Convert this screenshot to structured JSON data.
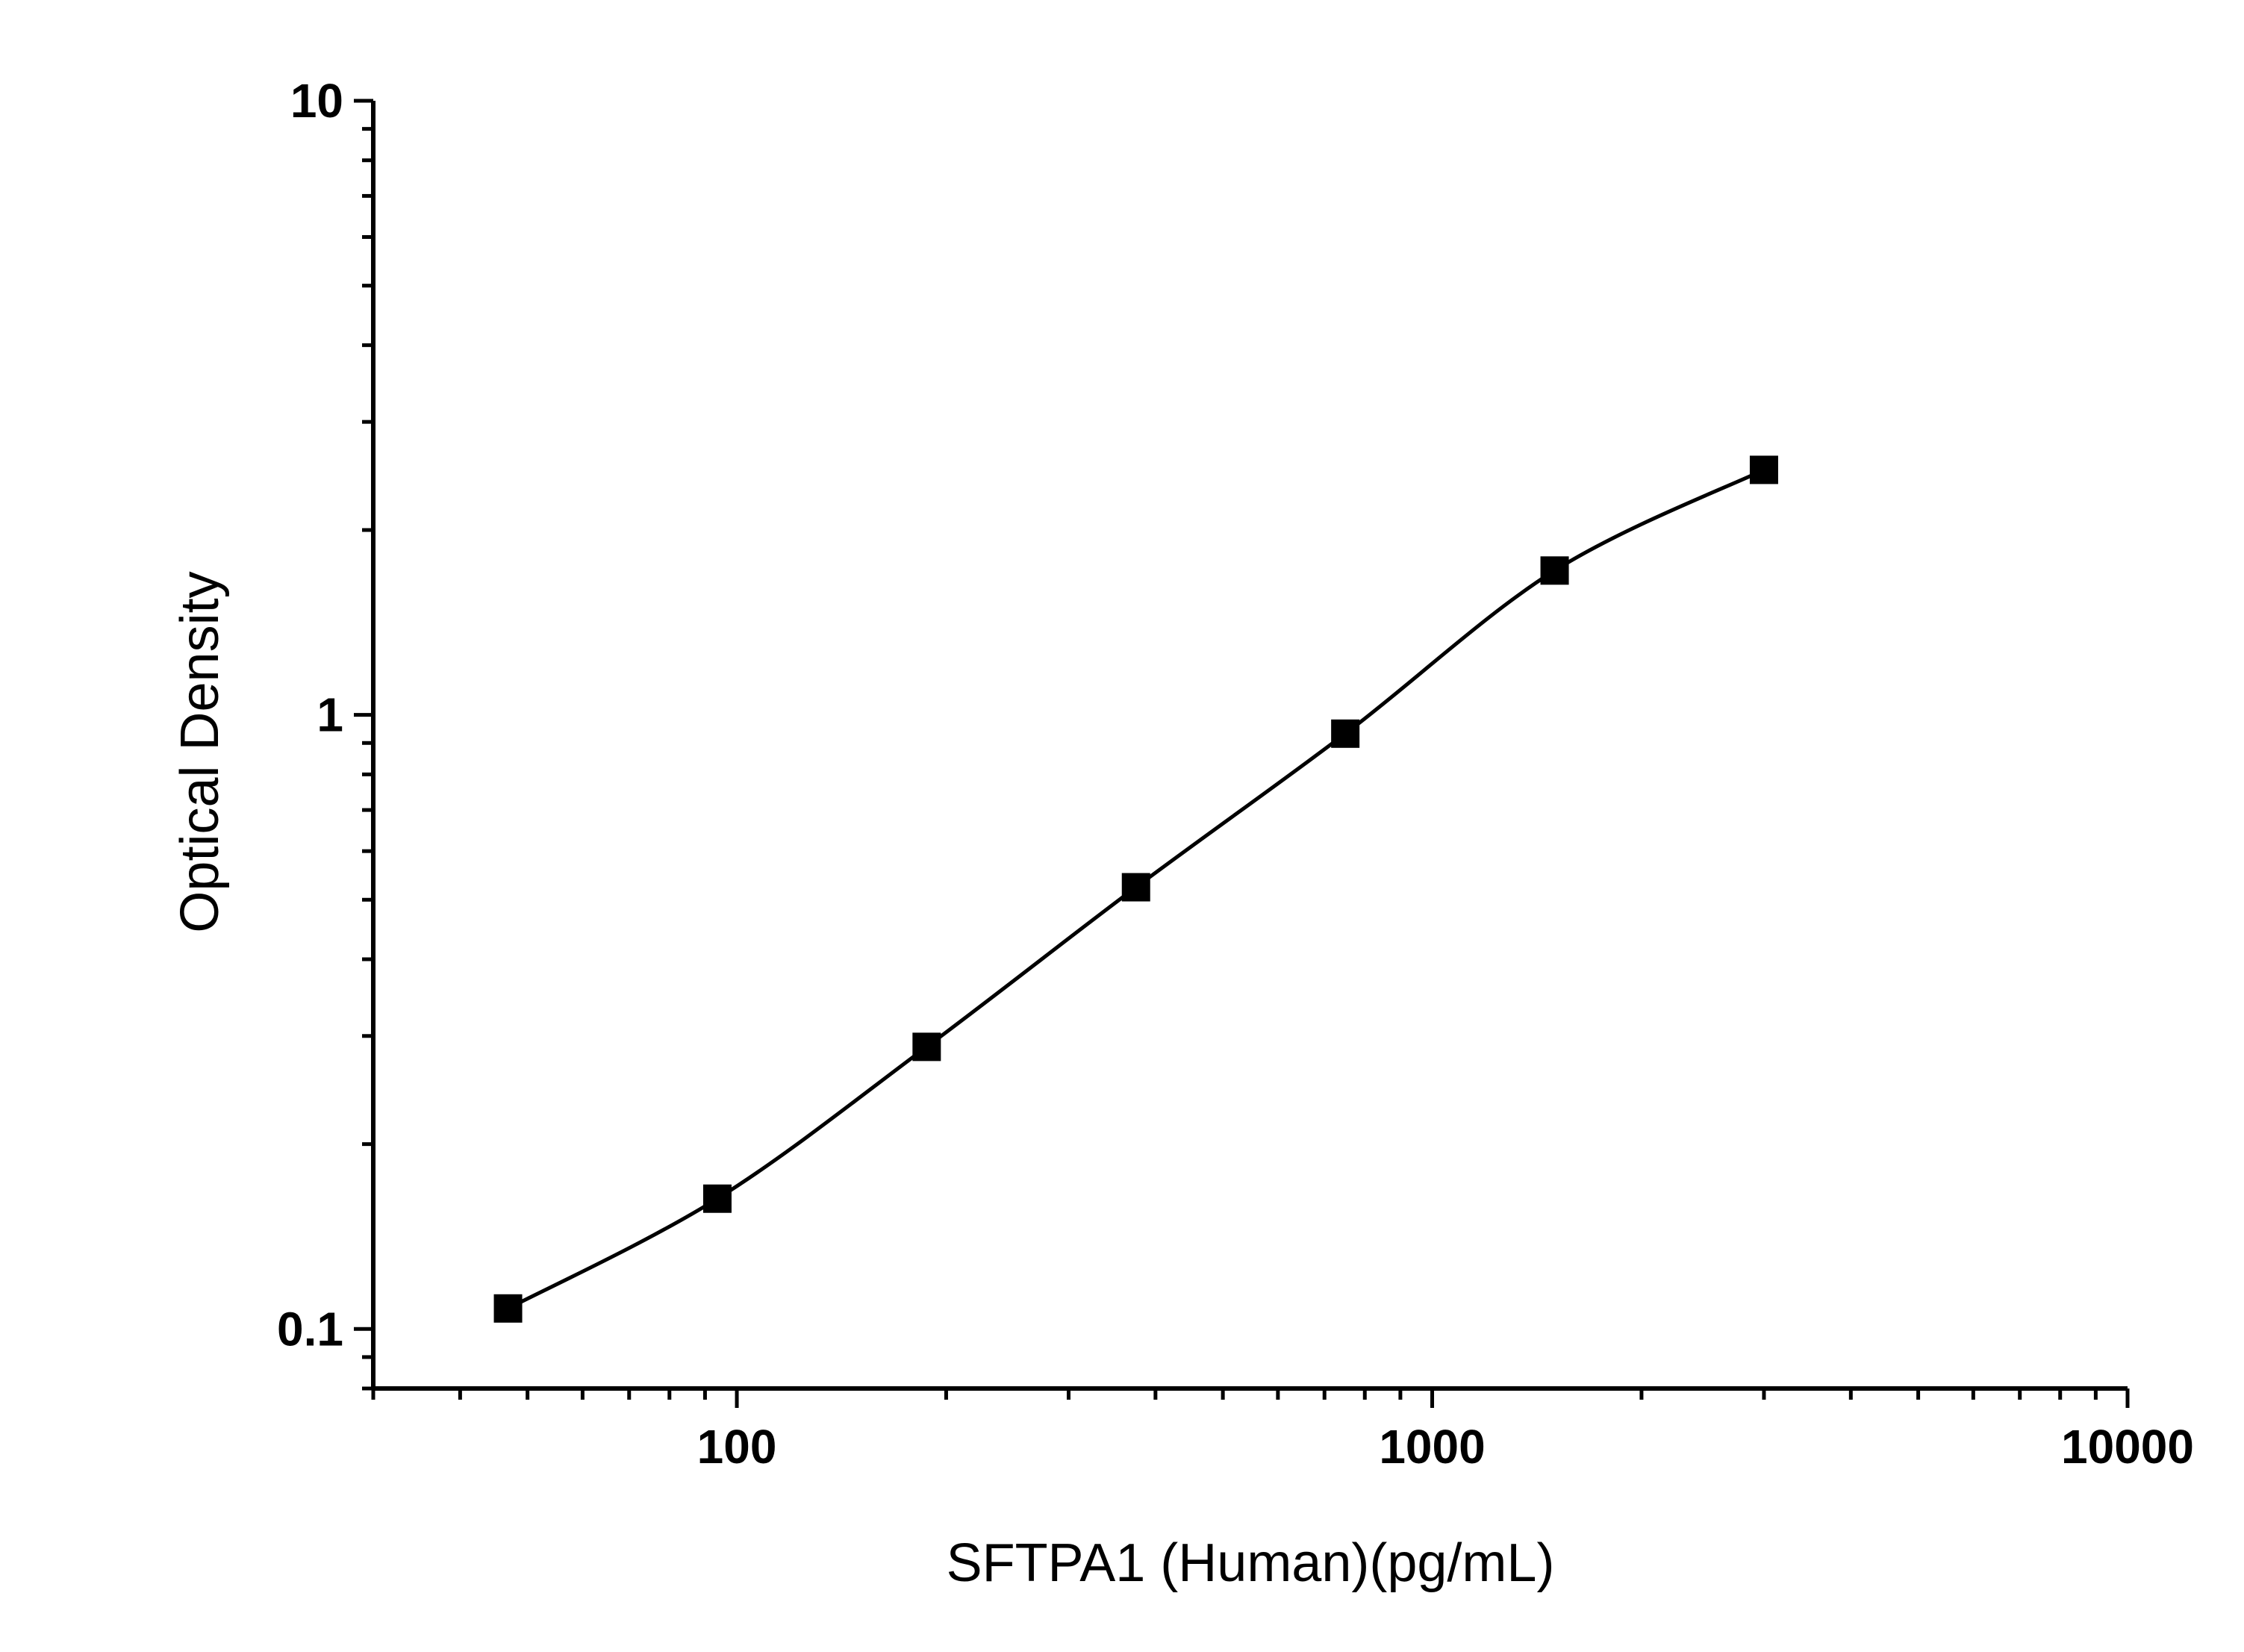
{
  "chart_data": {
    "type": "scatter",
    "xlabel": "SFTPA1 (Human)(pg/mL)",
    "ylabel": "Optical Density",
    "x_scale": "log",
    "y_scale": "log",
    "xlim": [
      30,
      10000
    ],
    "ylim": [
      0.08,
      10
    ],
    "x_ticks": [
      {
        "value": 100,
        "label": "100"
      },
      {
        "value": 1000,
        "label": "1000"
      },
      {
        "value": 10000,
        "label": "10000"
      }
    ],
    "y_ticks": [
      {
        "value": 0.1,
        "label": "0.1"
      },
      {
        "value": 1,
        "label": "1"
      },
      {
        "value": 10,
        "label": "10"
      }
    ],
    "grid": false,
    "series": [
      {
        "x": [
          46.875,
          93.75,
          187.5,
          375,
          750,
          1500,
          3000
        ],
        "y": [
          0.108,
          0.163,
          0.288,
          0.524,
          0.932,
          1.718,
          2.506
        ],
        "marker": "square",
        "color": "#000000",
        "fit_curve": true
      }
    ]
  }
}
